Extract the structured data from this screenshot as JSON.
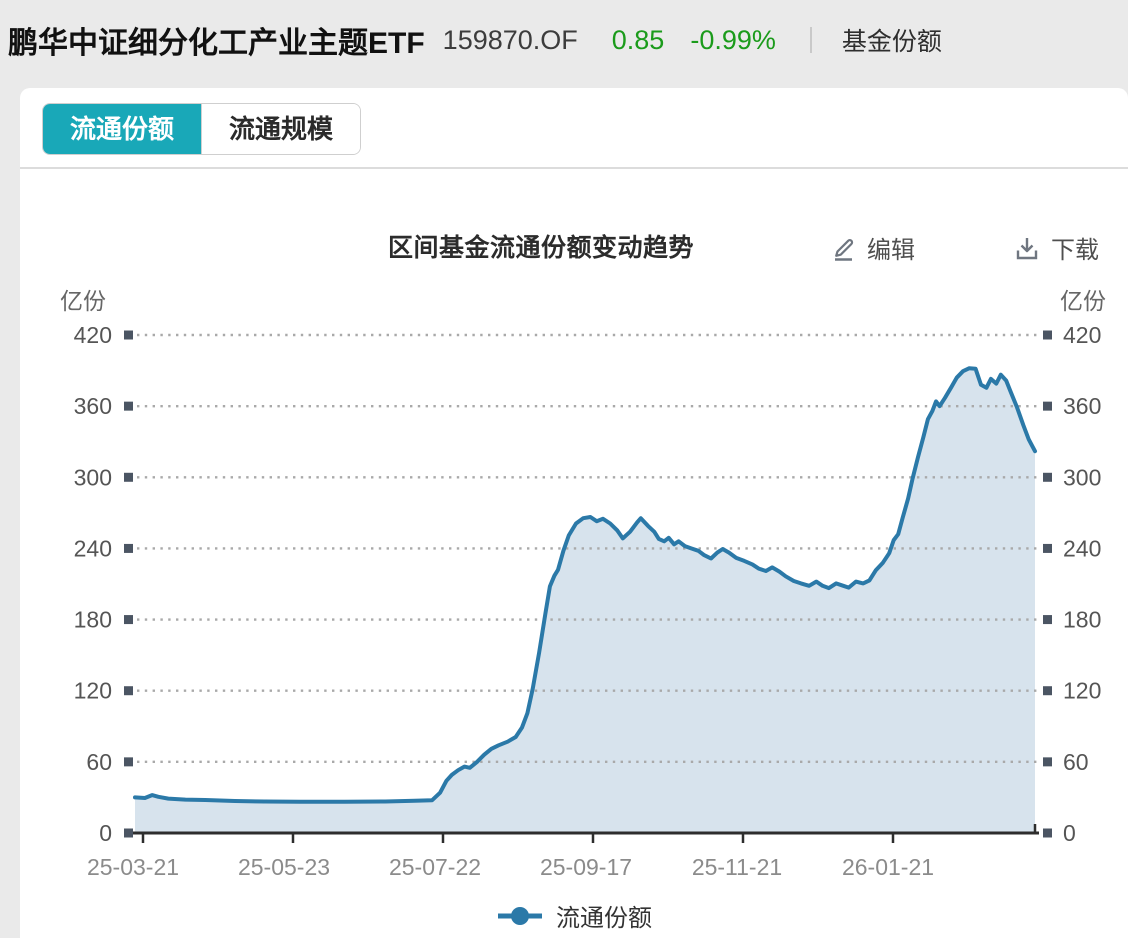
{
  "header": {
    "fund_name": "鹏华中证细分化工产业主题ETF",
    "fund_code": "159870.OF",
    "nav": "0.85",
    "change_pct": "-0.99%",
    "menu_item": "基金份额",
    "value_color": "#1b9b1b"
  },
  "tabs": [
    {
      "label": "流通份额",
      "active": true
    },
    {
      "label": "流通规模",
      "active": false
    }
  ],
  "toolbar": {
    "edit_label": "编辑",
    "download_label": "下载"
  },
  "chart_data": {
    "type": "area",
    "title": "区间基金流通份额变动趋势",
    "unit_left": "亿份",
    "unit_right": "亿份",
    "legend": [
      "流通份额"
    ],
    "ylim": [
      0,
      420
    ],
    "y_ticks": [
      0,
      60,
      120,
      180,
      240,
      300,
      360,
      420
    ],
    "x_tick_labels": [
      "25-03-21",
      "25-05-23",
      "25-07-22",
      "25-09-17",
      "25-11-21",
      "26-01-21"
    ],
    "grid": "dotted-horizontal",
    "legend_position": "bottom-center",
    "line_color": "#2b79a8",
    "fill_color": "#d7e3ed",
    "points": [
      [
        0,
        30
      ],
      [
        0.011,
        29.5
      ],
      [
        0.019,
        32
      ],
      [
        0.026,
        30.5
      ],
      [
        0.037,
        29
      ],
      [
        0.056,
        28.2
      ],
      [
        0.078,
        27.8
      ],
      [
        0.111,
        27
      ],
      [
        0.144,
        26.6
      ],
      [
        0.183,
        26.4
      ],
      [
        0.233,
        26.4
      ],
      [
        0.278,
        26.6
      ],
      [
        0.311,
        27.2
      ],
      [
        0.33,
        27.6
      ],
      [
        0.339,
        34
      ],
      [
        0.346,
        44
      ],
      [
        0.352,
        49
      ],
      [
        0.359,
        53
      ],
      [
        0.366,
        56
      ],
      [
        0.372,
        55
      ],
      [
        0.38,
        60
      ],
      [
        0.388,
        66
      ],
      [
        0.396,
        71
      ],
      [
        0.404,
        74
      ],
      [
        0.414,
        77
      ],
      [
        0.423,
        81
      ],
      [
        0.43,
        89
      ],
      [
        0.436,
        101
      ],
      [
        0.442,
        122
      ],
      [
        0.449,
        152
      ],
      [
        0.456,
        185
      ],
      [
        0.461,
        208
      ],
      [
        0.466,
        217
      ],
      [
        0.47,
        222
      ],
      [
        0.476,
        238
      ],
      [
        0.482,
        251
      ],
      [
        0.49,
        261
      ],
      [
        0.498,
        265.5
      ],
      [
        0.506,
        266.5
      ],
      [
        0.513,
        263
      ],
      [
        0.52,
        265
      ],
      [
        0.528,
        261
      ],
      [
        0.536,
        255
      ],
      [
        0.542,
        248.5
      ],
      [
        0.55,
        254
      ],
      [
        0.558,
        262
      ],
      [
        0.562,
        265.5
      ],
      [
        0.57,
        259
      ],
      [
        0.577,
        254
      ],
      [
        0.582,
        248
      ],
      [
        0.588,
        246
      ],
      [
        0.593,
        249
      ],
      [
        0.599,
        243.5
      ],
      [
        0.604,
        246
      ],
      [
        0.611,
        242
      ],
      [
        0.618,
        240
      ],
      [
        0.626,
        238
      ],
      [
        0.632,
        234.5
      ],
      [
        0.64,
        231.5
      ],
      [
        0.647,
        236.5
      ],
      [
        0.653,
        239.5
      ],
      [
        0.66,
        236.5
      ],
      [
        0.668,
        232
      ],
      [
        0.677,
        229.5
      ],
      [
        0.686,
        226.5
      ],
      [
        0.693,
        223
      ],
      [
        0.701,
        221
      ],
      [
        0.708,
        224
      ],
      [
        0.716,
        220.5
      ],
      [
        0.723,
        216.5
      ],
      [
        0.732,
        212.5
      ],
      [
        0.74,
        210.5
      ],
      [
        0.749,
        208.5
      ],
      [
        0.757,
        212
      ],
      [
        0.764,
        208.5
      ],
      [
        0.771,
        206.5
      ],
      [
        0.779,
        210.5
      ],
      [
        0.787,
        208.5
      ],
      [
        0.793,
        207
      ],
      [
        0.801,
        212
      ],
      [
        0.809,
        210.5
      ],
      [
        0.816,
        213
      ],
      [
        0.823,
        221.5
      ],
      [
        0.831,
        228
      ],
      [
        0.838,
        236
      ],
      [
        0.843,
        247
      ],
      [
        0.848,
        252
      ],
      [
        0.853,
        266
      ],
      [
        0.859,
        282
      ],
      [
        0.864,
        299
      ],
      [
        0.87,
        317
      ],
      [
        0.876,
        334
      ],
      [
        0.881,
        349
      ],
      [
        0.886,
        356
      ],
      [
        0.89,
        364
      ],
      [
        0.894,
        360
      ],
      [
        0.9,
        367
      ],
      [
        0.907,
        376
      ],
      [
        0.913,
        384
      ],
      [
        0.92,
        389.5
      ],
      [
        0.927,
        392
      ],
      [
        0.934,
        391.5
      ],
      [
        0.94,
        378
      ],
      [
        0.946,
        375.5
      ],
      [
        0.951,
        383
      ],
      [
        0.957,
        379
      ],
      [
        0.962,
        386.5
      ],
      [
        0.968,
        381.5
      ],
      [
        0.973,
        372
      ],
      [
        0.98,
        359
      ],
      [
        0.987,
        344
      ],
      [
        0.993,
        332
      ],
      [
        1,
        322
      ]
    ]
  }
}
